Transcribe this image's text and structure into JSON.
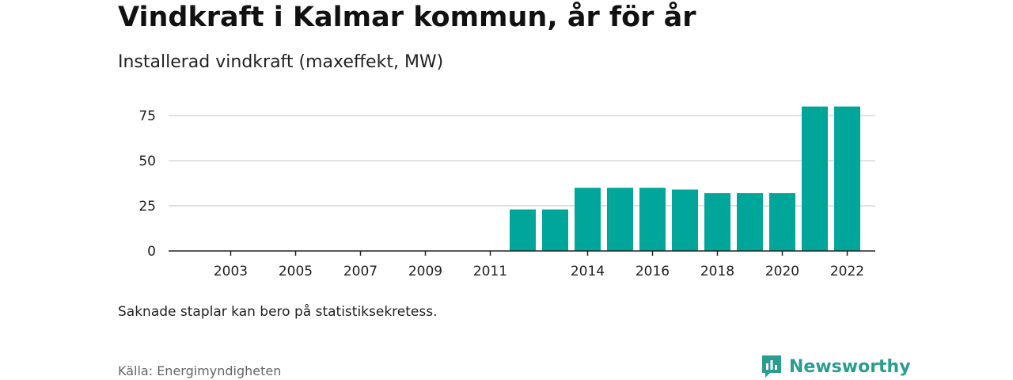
{
  "header": {
    "title": "Vindkraft i Kalmar kommun, år för år",
    "subtitle": "Installerad vindkraft (maxeffekt, MW)"
  },
  "footer": {
    "note": "Saknade staplar kan bero på statistiksekretess.",
    "source": "Källa: Energimyndigheten",
    "brand": "Newsworthy",
    "brand_icon": "newsworthy-logo-icon"
  },
  "colors": {
    "bar": "#00a69a",
    "grid": "#d9d9d9",
    "axis": "#222222",
    "brand": "#2a9d8f"
  },
  "chart_data": {
    "type": "bar",
    "title": "Vindkraft i Kalmar kommun, år för år",
    "subtitle": "Installerad vindkraft (maxeffekt, MW)",
    "categories": [
      "2002",
      "2003",
      "2004",
      "2005",
      "2006",
      "2007",
      "2008",
      "2009",
      "2010",
      "2011",
      "2012",
      "2013",
      "2014",
      "2015",
      "2016",
      "2017",
      "2018",
      "2019",
      "2020",
      "2021",
      "2022"
    ],
    "x_tick_labels": [
      "2003",
      "2005",
      "2007",
      "2009",
      "2011",
      "2014",
      "2016",
      "2018",
      "2020",
      "2022"
    ],
    "values": [
      null,
      null,
      null,
      null,
      null,
      null,
      null,
      null,
      null,
      null,
      23,
      23,
      35,
      35,
      35,
      34,
      32,
      32,
      32,
      80,
      80
    ],
    "y_ticks": [
      0,
      25,
      50,
      75
    ],
    "ylim": [
      0,
      82
    ],
    "grid": true,
    "legend": "none"
  }
}
